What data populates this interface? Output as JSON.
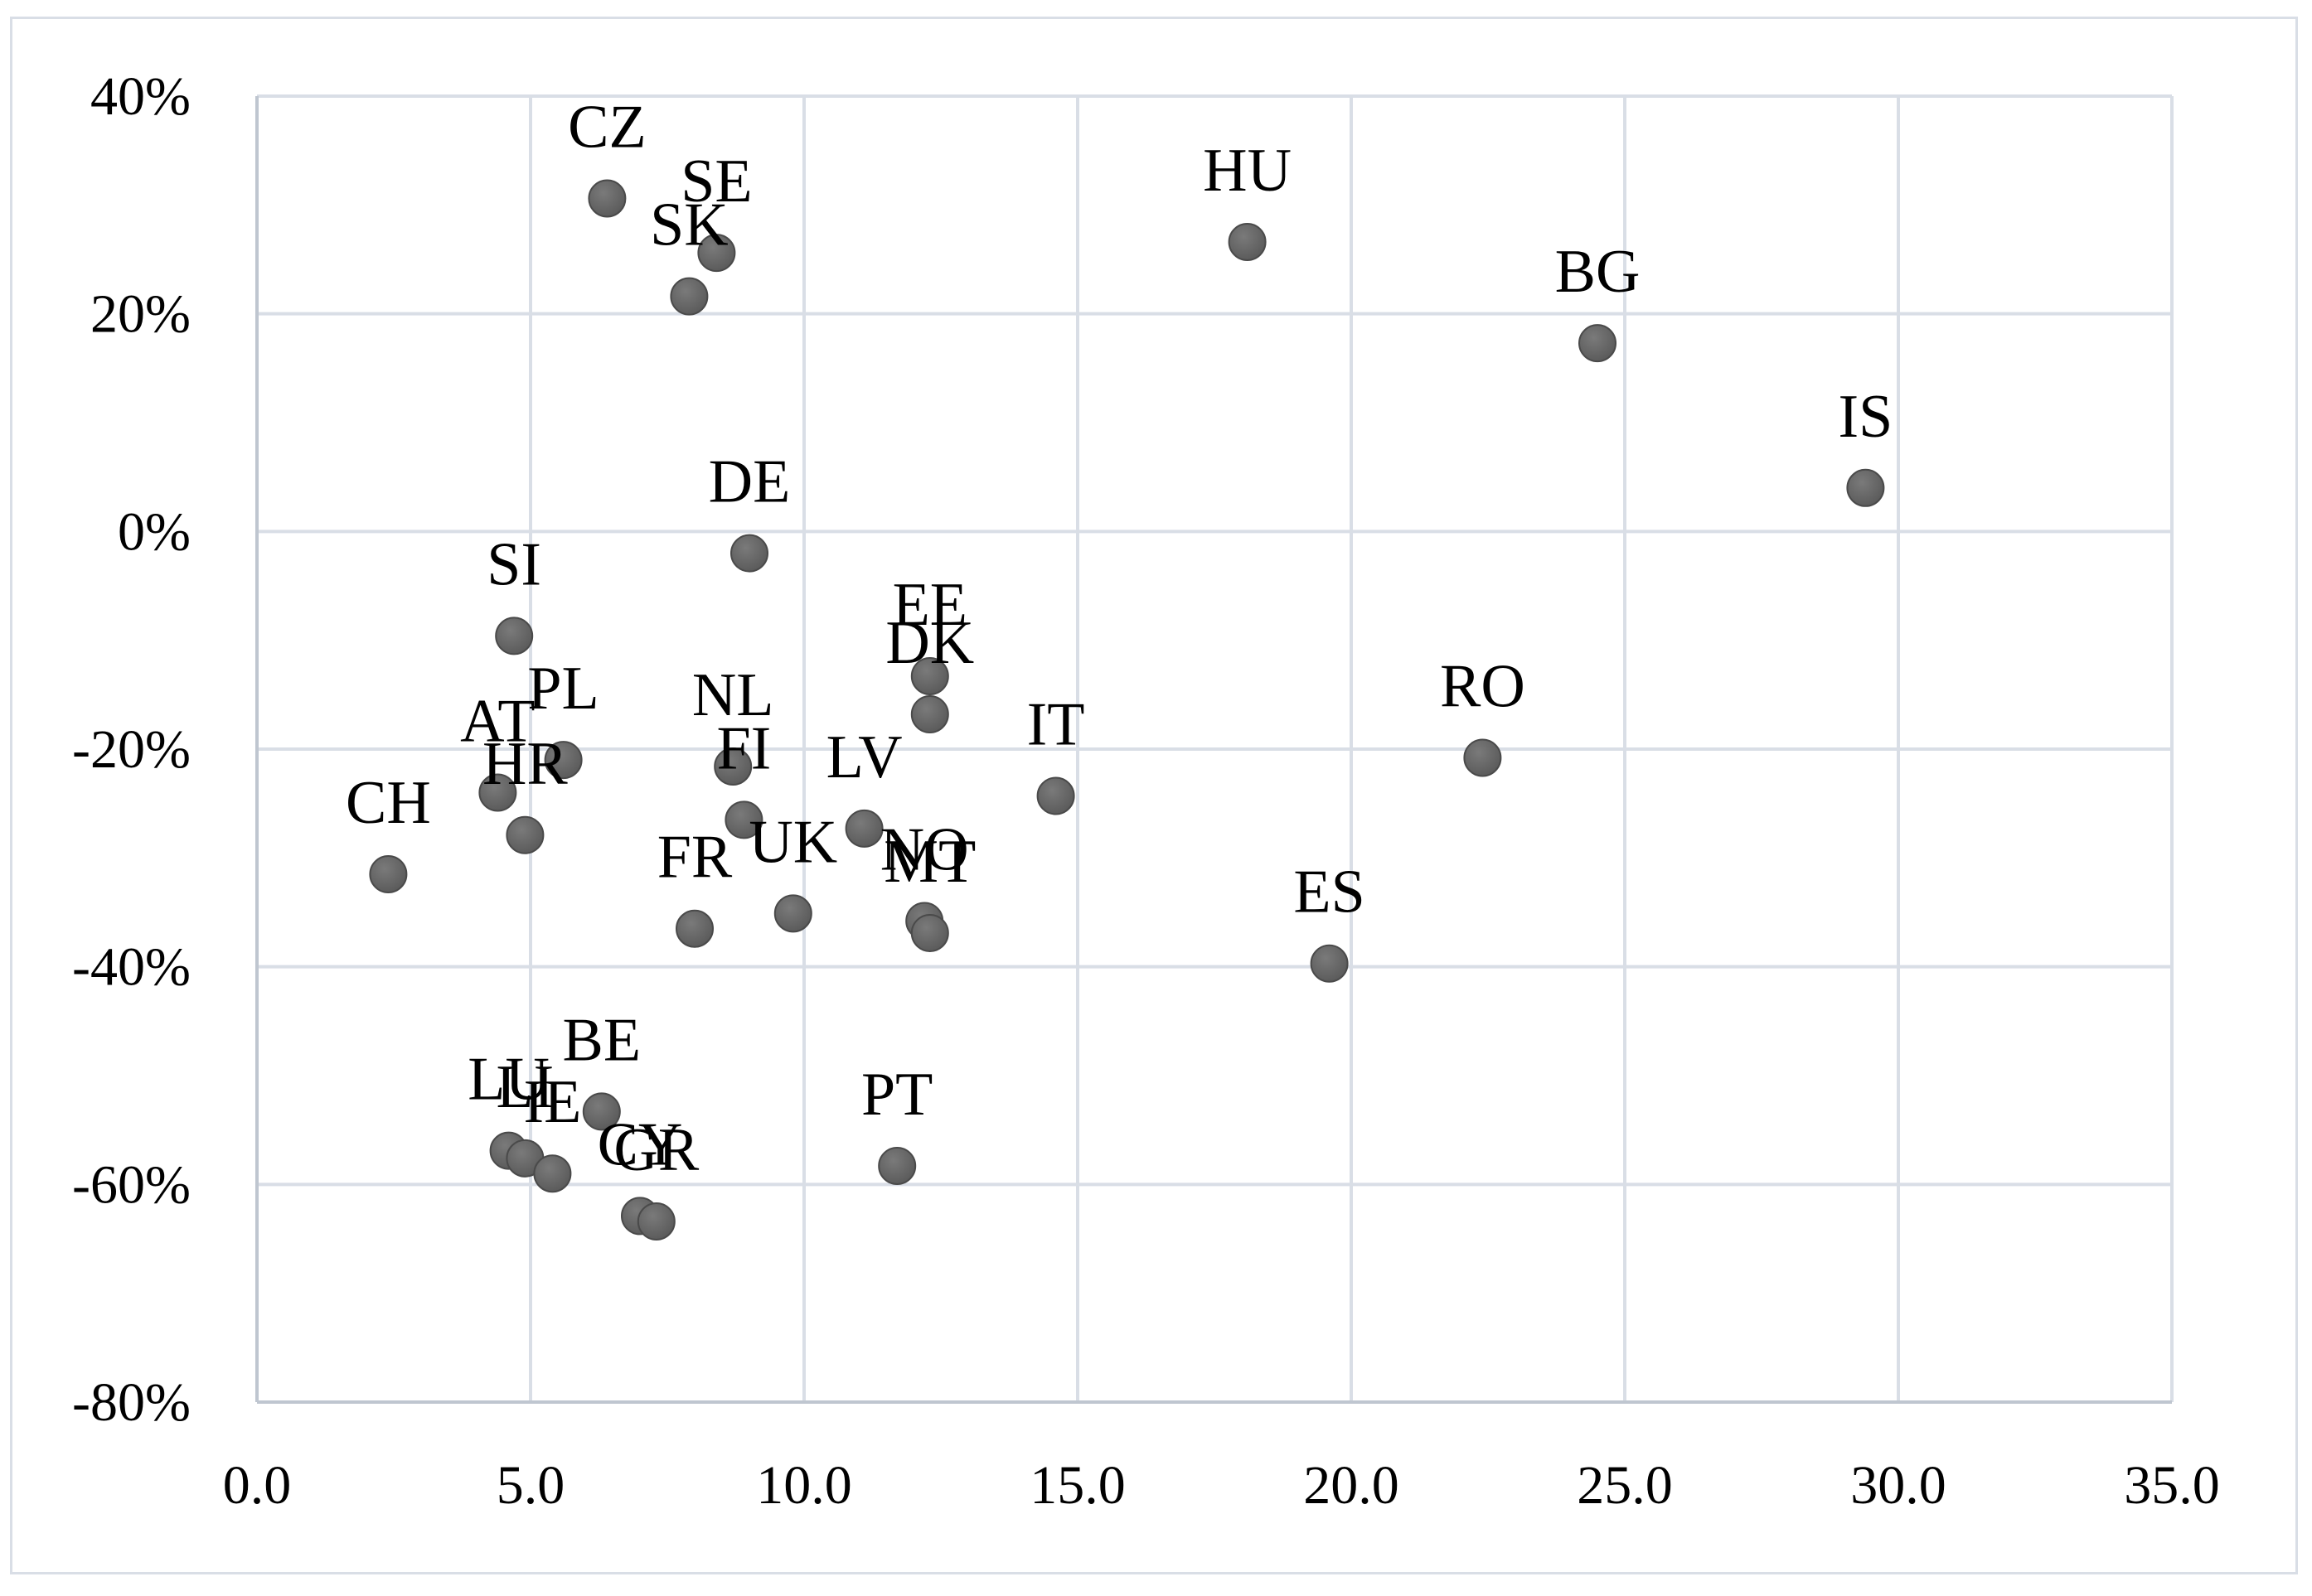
{
  "chart_data": {
    "type": "scatter",
    "title": "",
    "xlabel": "",
    "ylabel": "",
    "xlim": [
      0,
      35
    ],
    "ylim": [
      -80,
      40
    ],
    "x_ticks": [
      0,
      5,
      10,
      15,
      20,
      25,
      30,
      35
    ],
    "x_tick_labels": [
      "0.0",
      "5.0",
      "10.0",
      "15.0",
      "20.0",
      "25.0",
      "30.0",
      "35.0"
    ],
    "y_ticks": [
      40,
      20,
      0,
      -20,
      -40,
      -60,
      -80
    ],
    "y_tick_labels": [
      "40%",
      "20%",
      "0%",
      "-20%",
      "-40%",
      "-60%",
      "-80%"
    ],
    "grid": true,
    "legend": "none",
    "marker_color": "#595959",
    "points": [
      {
        "label": "CZ",
        "x": 6.4,
        "y": 30.6
      },
      {
        "label": "SE",
        "x": 8.4,
        "y": 25.6
      },
      {
        "label": "SK",
        "x": 7.9,
        "y": 21.6
      },
      {
        "label": "HU",
        "x": 18.1,
        "y": 26.6
      },
      {
        "label": "BG",
        "x": 24.5,
        "y": 17.3
      },
      {
        "label": "IS",
        "x": 29.4,
        "y": 4.0
      },
      {
        "label": "DE",
        "x": 9.0,
        "y": -2.0
      },
      {
        "label": "SI",
        "x": 4.7,
        "y": -9.6
      },
      {
        "label": "EE",
        "x": 12.3,
        "y": -13.3
      },
      {
        "label": "DK",
        "x": 12.3,
        "y": -16.8
      },
      {
        "label": "PL",
        "x": 5.6,
        "y": -21.0
      },
      {
        "label": "AT",
        "x": 4.4,
        "y": -24.0
      },
      {
        "label": "HR",
        "x": 4.9,
        "y": -27.9
      },
      {
        "label": "CH",
        "x": 2.4,
        "y": -31.5
      },
      {
        "label": "FI",
        "x": 8.9,
        "y": -26.5
      },
      {
        "label": "NL",
        "x": 8.7,
        "y": -21.6
      },
      {
        "label": "LV",
        "x": 11.1,
        "y": -27.3
      },
      {
        "label": "UK",
        "x": 9.8,
        "y": -35.1
      },
      {
        "label": "FR",
        "x": 8.0,
        "y": -36.5
      },
      {
        "label": "NO",
        "x": 12.2,
        "y": -35.8
      },
      {
        "label": "MT",
        "x": 12.3,
        "y": -36.9
      },
      {
        "label": "IT",
        "x": 14.6,
        "y": -24.3
      },
      {
        "label": "RO",
        "x": 22.4,
        "y": -20.8
      },
      {
        "label": "ES",
        "x": 19.6,
        "y": -39.7
      },
      {
        "label": "BE",
        "x": 6.3,
        "y": -53.3
      },
      {
        "label": "LU",
        "x": 4.6,
        "y": -56.9
      },
      {
        "label": "LI",
        "x": 4.9,
        "y": -57.6
      },
      {
        "label": "IE",
        "x": 5.4,
        "y": -59.0
      },
      {
        "label": "CY",
        "x": 7.0,
        "y": -62.9
      },
      {
        "label": "GR",
        "x": 7.3,
        "y": -63.4
      },
      {
        "label": "PT",
        "x": 11.7,
        "y": -58.3
      }
    ]
  }
}
